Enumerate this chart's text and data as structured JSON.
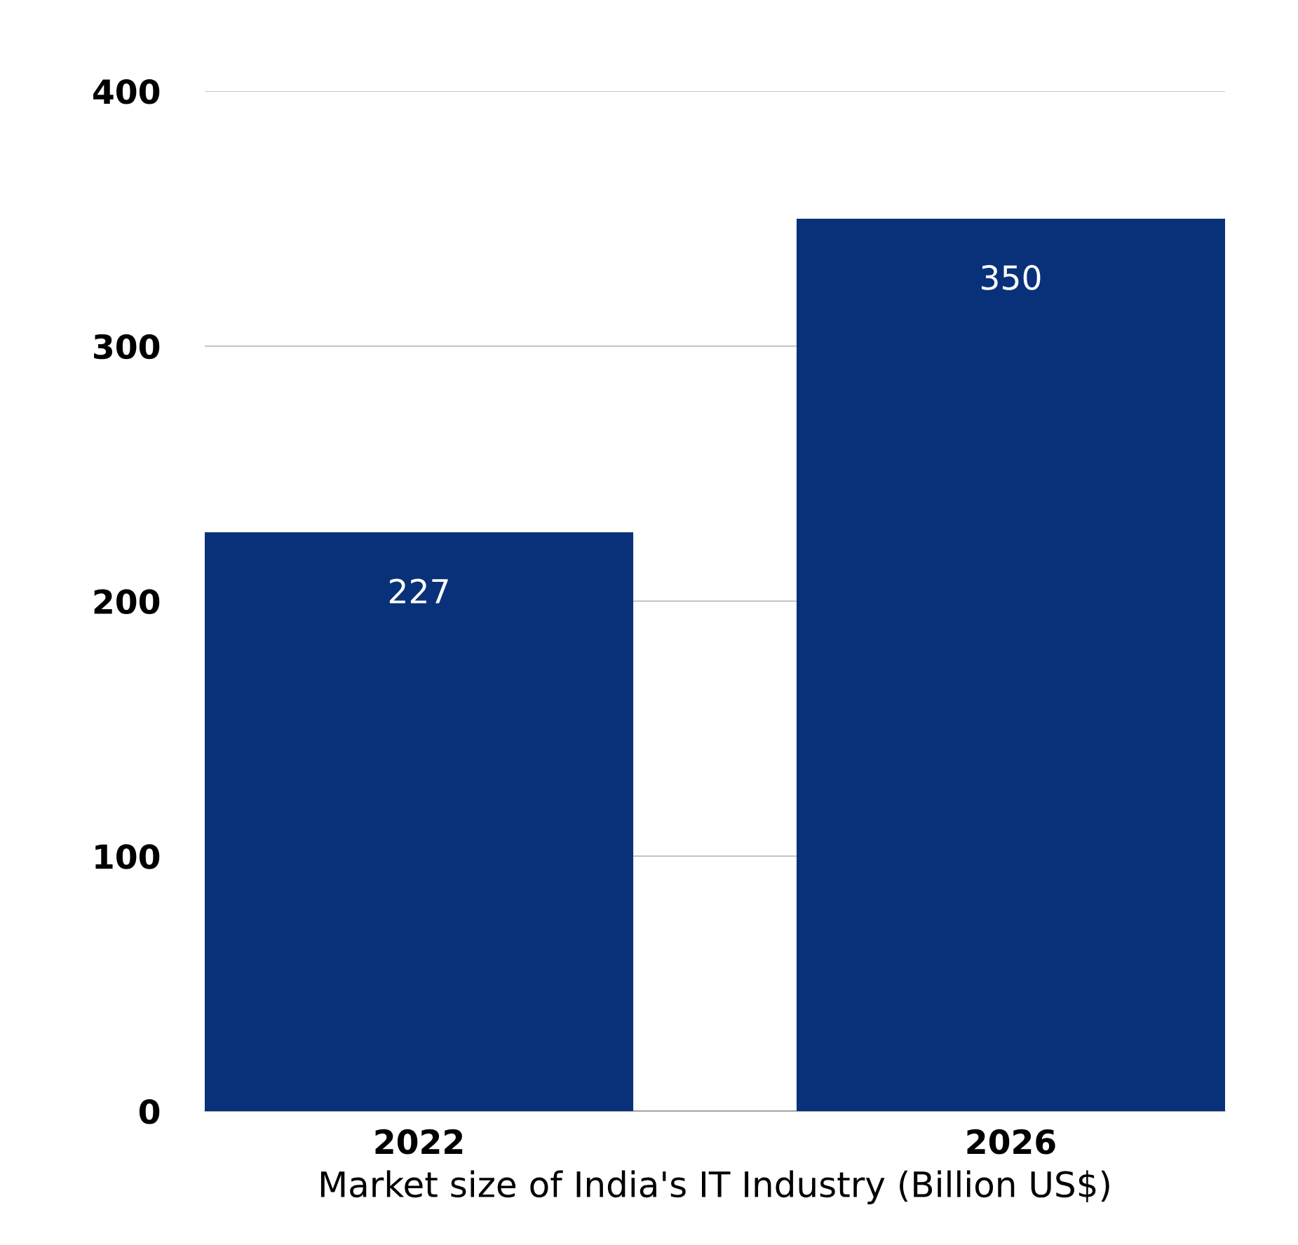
{
  "chart_data": {
    "type": "bar",
    "xlabel": "Market size of India's IT Industry (Billion US$)",
    "categories": [
      "2022",
      "2026"
    ],
    "values": [
      227,
      350
    ],
    "color": "#09317a",
    "ylim": [
      0,
      400
    ],
    "yticks": [
      0,
      100,
      200,
      300,
      400
    ],
    "grid": "y",
    "data_labels": true
  }
}
